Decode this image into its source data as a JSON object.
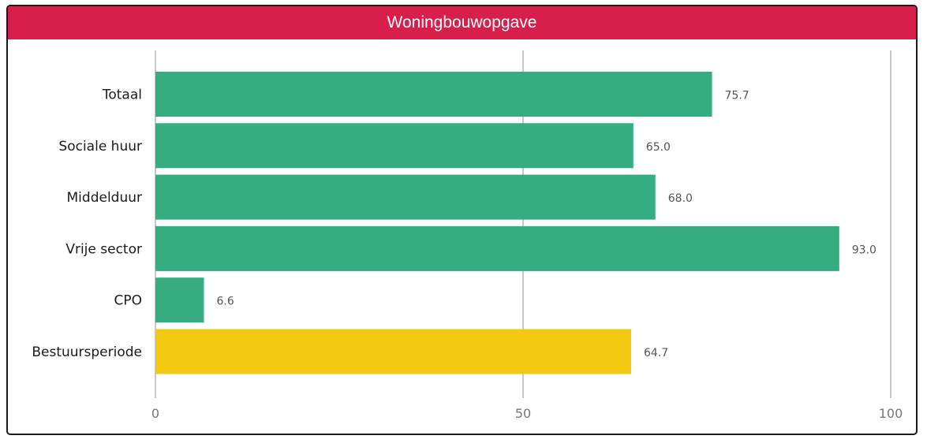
{
  "chart_data": {
    "type": "bar",
    "orientation": "horizontal",
    "title": "Woningbouwopgave",
    "categories": [
      "Totaal",
      "Sociale huur",
      "Middelduur",
      "Vrije sector",
      "CPO",
      "Bestuursperiode"
    ],
    "values": [
      75.7,
      65.0,
      68.0,
      93.0,
      6.6,
      64.7
    ],
    "value_labels": [
      "75.7",
      "65.0",
      "68.0",
      "93.0",
      "6.6",
      "64.7"
    ],
    "bar_colors": [
      "#34ae80",
      "#34ae80",
      "#34ae80",
      "#34ae80",
      "#34ae80",
      "#f2c811"
    ],
    "xlim": [
      0,
      100
    ],
    "xticks": [
      0,
      50,
      100
    ],
    "xtick_labels": [
      "0",
      "50",
      "100"
    ],
    "grid": true,
    "legend": "none"
  },
  "colors": {
    "header": "#d81e4a",
    "bar_primary": "#34ae80",
    "bar_highlight": "#f2c811"
  }
}
